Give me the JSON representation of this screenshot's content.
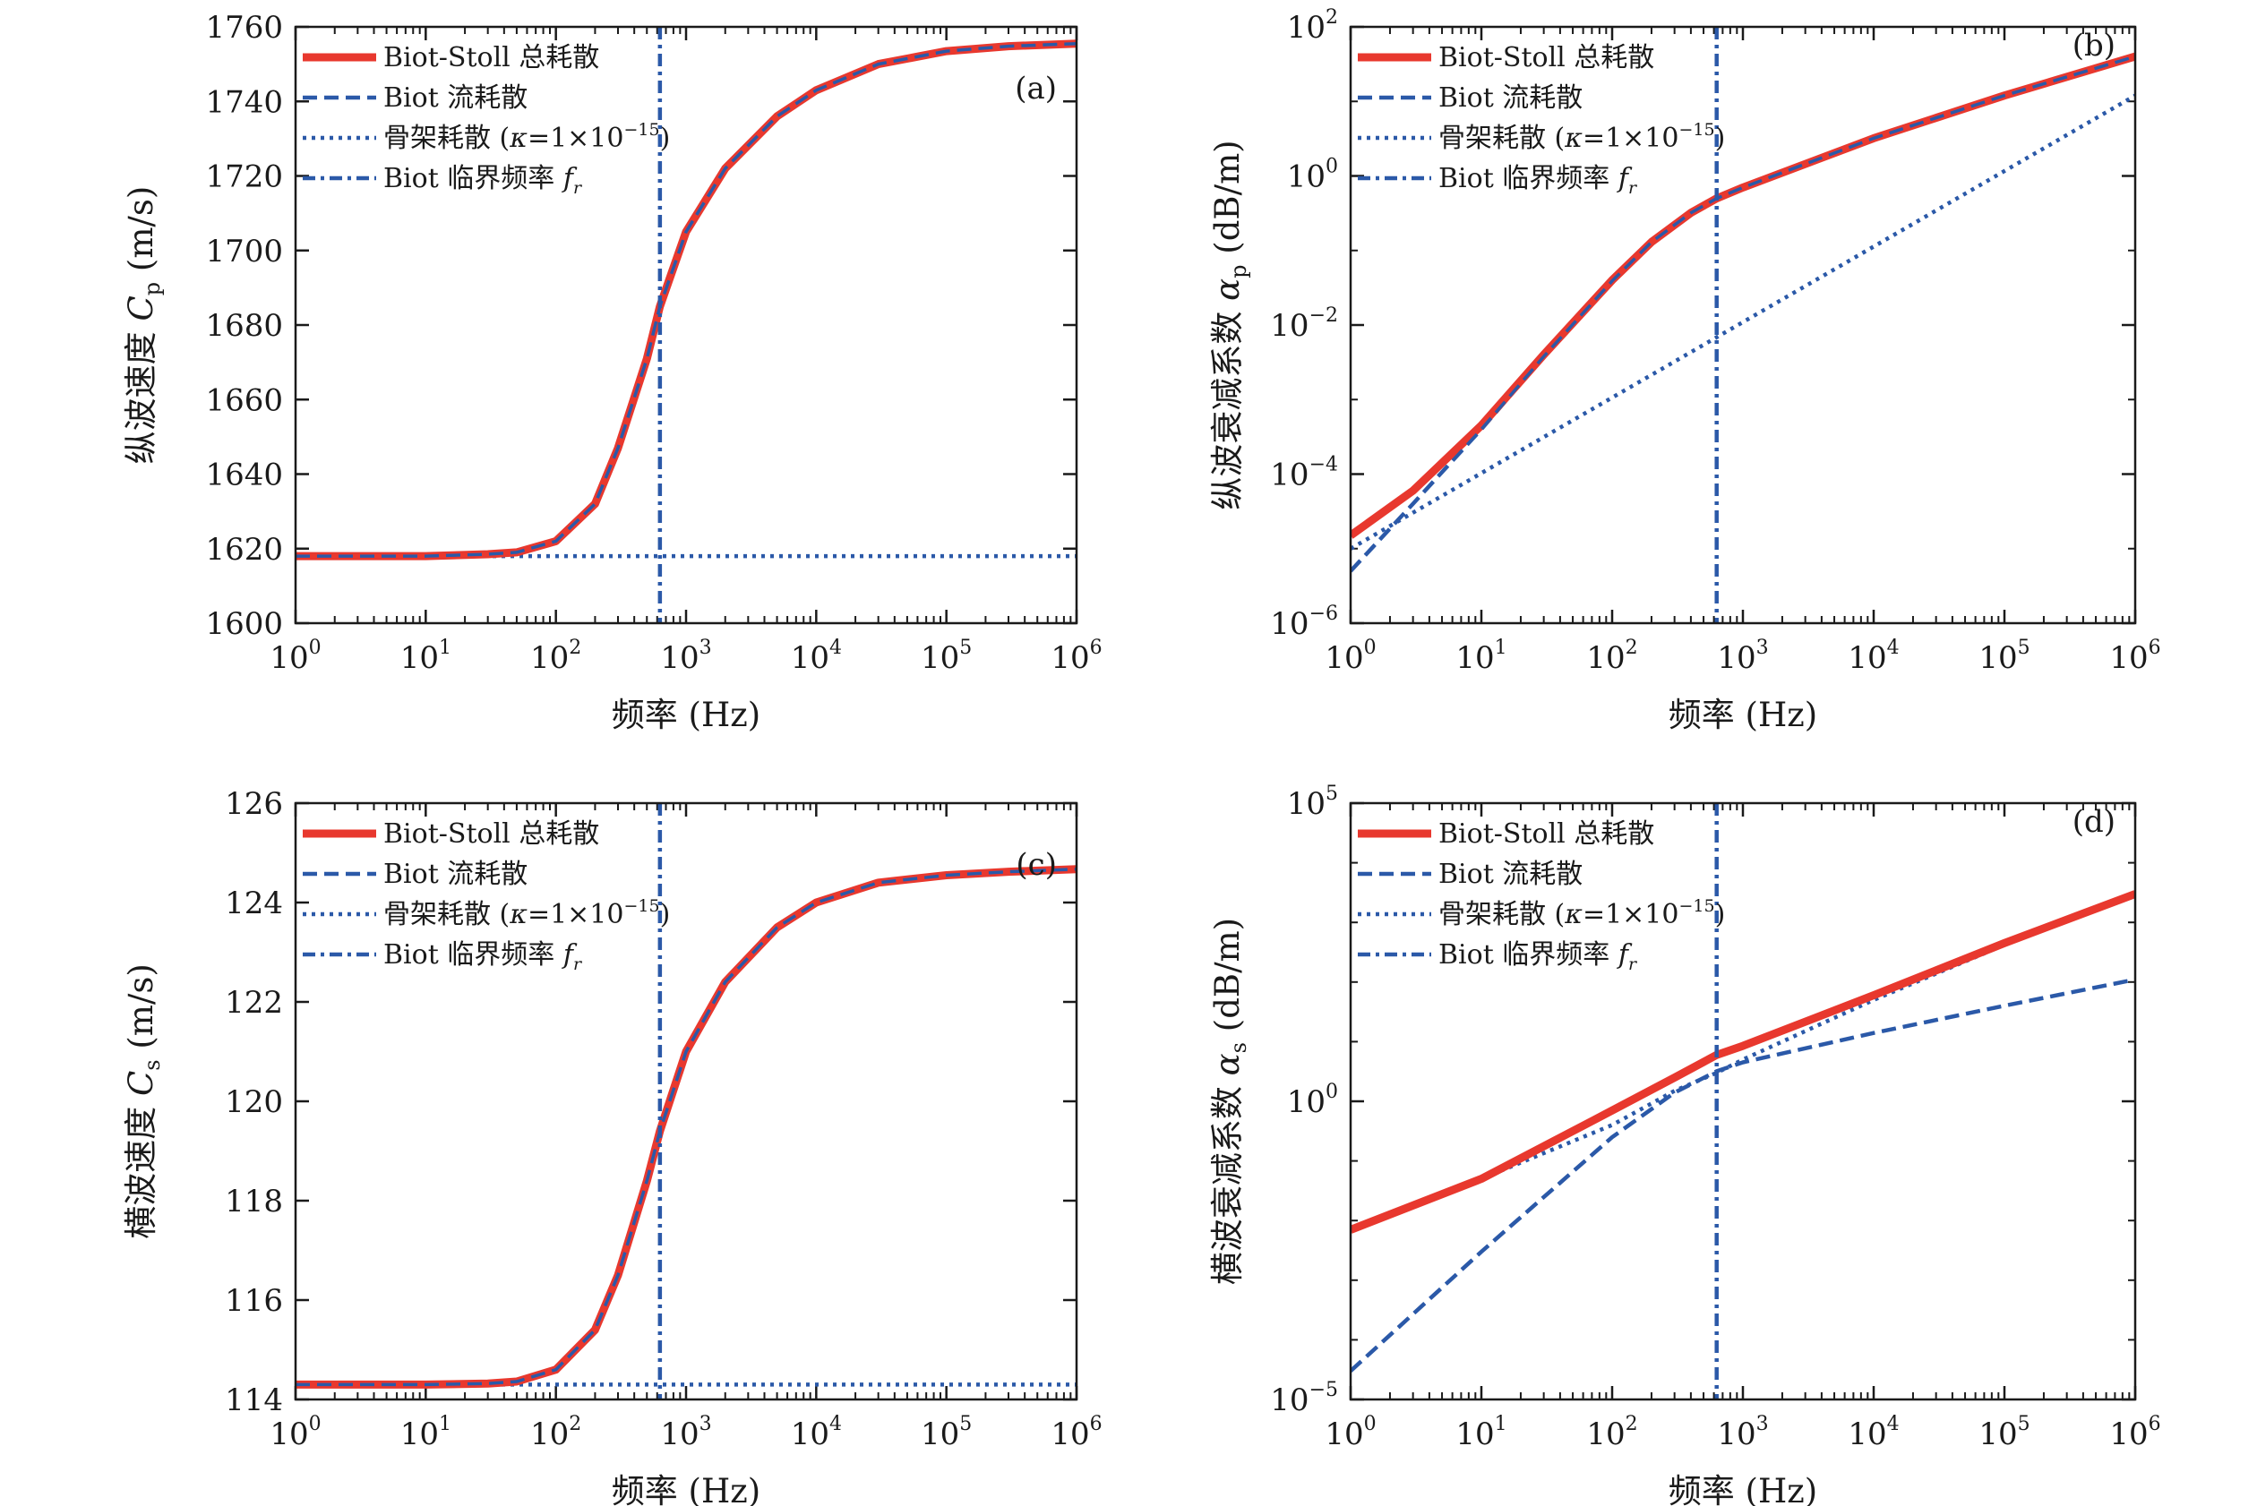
{
  "colors": {
    "red": "#e8382e",
    "blue": "#2b59a8",
    "axis": "#1a1a1a"
  },
  "legend": [
    {
      "key": "total",
      "text": "Biot-Stoll 总耗散",
      "style": "solid-red"
    },
    {
      "key": "flow",
      "text": "Biot 流耗散",
      "style": "dashed-blue"
    },
    {
      "key": "frame",
      "text": "骨架耗散 (κ=1×10⁻¹⁵)",
      "pre": "骨架耗散 (",
      "kappa": "κ",
      "mid": "=1×10",
      "sup": "−15",
      "post": ")",
      "style": "dotted-blue"
    },
    {
      "key": "critical",
      "text": "Biot 临界频率 fᵣ",
      "pre": "Biot 临界频率 ",
      "f": "f",
      "sub": "r",
      "style": "dashdot-blue"
    }
  ],
  "x_axis": {
    "label": "频率 (Hz)",
    "ticks": [
      {
        "base": "10",
        "exp": "0"
      },
      {
        "base": "10",
        "exp": "1"
      },
      {
        "base": "10",
        "exp": "2"
      },
      {
        "base": "10",
        "exp": "3"
      },
      {
        "base": "10",
        "exp": "4"
      },
      {
        "base": "10",
        "exp": "5"
      },
      {
        "base": "10",
        "exp": "6"
      }
    ]
  },
  "panels": [
    {
      "tag": "(a)",
      "ylabel_pre": "纵波速度 ",
      "ylabel_sym": "C",
      "ylabel_sub": "p",
      "ylabel_post": " (m/s)",
      "y_ticks": [
        "1600",
        "1620",
        "1640",
        "1660",
        "1680",
        "1700",
        "1720",
        "1740",
        "1760"
      ]
    },
    {
      "tag": "(b)",
      "ylabel_pre": "纵波衰减系数 ",
      "ylabel_sym": "α",
      "ylabel_sub": "p",
      "ylabel_post": " (dB/m)",
      "y_ticks": [
        {
          "base": "10",
          "exp": "−6"
        },
        {
          "base": "10",
          "exp": "−4"
        },
        {
          "base": "10",
          "exp": "−2"
        },
        {
          "base": "10",
          "exp": "0"
        },
        {
          "base": "10",
          "exp": "2"
        }
      ]
    },
    {
      "tag": "(c)",
      "ylabel_pre": "横波速度 ",
      "ylabel_sym": "C",
      "ylabel_sub": "s",
      "ylabel_post": " (m/s)",
      "y_ticks": [
        "114",
        "116",
        "118",
        "120",
        "122",
        "124",
        "126"
      ]
    },
    {
      "tag": "(d)",
      "ylabel_pre": "横波衰减系数 ",
      "ylabel_sym": "α",
      "ylabel_sub": "s",
      "ylabel_post": " (dB/m)",
      "y_ticks": [
        {
          "base": "10",
          "exp": "−5"
        },
        {
          "base": "10",
          "exp": "0"
        },
        {
          "base": "10",
          "exp": "5"
        }
      ]
    }
  ],
  "chart_data": [
    {
      "panel": "a",
      "type": "line",
      "xscale": "log",
      "xlim": [
        1,
        1000000
      ],
      "yscale": "linear",
      "ylim": [
        1600,
        1760
      ],
      "xlabel": "频率 (Hz)",
      "ylabel": "纵波速度 Cp (m/s)",
      "critical_frequency_hz": 630,
      "series": [
        {
          "name": "Biot-Stoll 总耗散",
          "x": [
            1,
            10,
            30,
            50,
            100,
            200,
            300,
            500,
            630,
            1000,
            2000,
            5000,
            10000,
            30000,
            100000,
            300000,
            1000000
          ],
          "y": [
            1618,
            1618,
            1618.5,
            1619,
            1622,
            1632,
            1647,
            1671,
            1685,
            1705,
            1722,
            1736,
            1743,
            1750,
            1753.5,
            1754.8,
            1755.5
          ]
        },
        {
          "name": "Biot 流耗散",
          "x": [
            1,
            10,
            30,
            50,
            100,
            200,
            300,
            500,
            630,
            1000,
            2000,
            5000,
            10000,
            30000,
            100000,
            300000,
            1000000
          ],
          "y": [
            1618,
            1618,
            1618.5,
            1619,
            1622,
            1632,
            1647,
            1671,
            1685,
            1705,
            1722,
            1736,
            1743,
            1750,
            1753.5,
            1754.8,
            1755.5
          ]
        },
        {
          "name": "骨架耗散 (κ=1×10⁻¹⁵)",
          "x": [
            1,
            1000000
          ],
          "y": [
            1618,
            1618
          ]
        }
      ]
    },
    {
      "panel": "b",
      "type": "line",
      "xscale": "log",
      "xlim": [
        1,
        1000000
      ],
      "yscale": "log",
      "ylim": [
        1e-06,
        100
      ],
      "xlabel": "频率 (Hz)",
      "ylabel": "纵波衰减系数 αp (dB/m)",
      "critical_frequency_hz": 630,
      "series": [
        {
          "name": "Biot-Stoll 总耗散",
          "x": [
            1,
            3,
            10,
            30,
            100,
            200,
            400,
            630,
            1000,
            10000,
            100000,
            1000000
          ],
          "y": [
            1.5e-05,
            6e-05,
            0.00045,
            0.004,
            0.04,
            0.13,
            0.32,
            0.5,
            0.7,
            3.2,
            12,
            40
          ]
        },
        {
          "name": "Biot 流耗散",
          "x": [
            1,
            3,
            10,
            30,
            100,
            200,
            400,
            630,
            1000,
            10000,
            100000,
            1000000
          ],
          "y": [
            5e-06,
            4e-05,
            0.0004,
            0.0038,
            0.039,
            0.13,
            0.32,
            0.5,
            0.7,
            3.2,
            12,
            40
          ]
        },
        {
          "name": "骨架耗散 (κ=1×10⁻¹⁵)",
          "x": [
            1,
            1000000
          ],
          "y": [
            1e-05,
            12
          ]
        }
      ]
    },
    {
      "panel": "c",
      "type": "line",
      "xscale": "log",
      "xlim": [
        1,
        1000000
      ],
      "yscale": "linear",
      "ylim": [
        114,
        126
      ],
      "xlabel": "频率 (Hz)",
      "ylabel": "横波速度 Cs (m/s)",
      "critical_frequency_hz": 630,
      "series": [
        {
          "name": "Biot-Stoll 总耗散",
          "x": [
            1,
            10,
            30,
            50,
            100,
            200,
            300,
            500,
            630,
            1000,
            2000,
            5000,
            10000,
            30000,
            100000,
            300000,
            1000000
          ],
          "y": [
            114.3,
            114.3,
            114.32,
            114.36,
            114.6,
            115.4,
            116.5,
            118.4,
            119.4,
            121.0,
            122.4,
            123.5,
            124.0,
            124.4,
            124.55,
            124.62,
            124.67
          ]
        },
        {
          "name": "Biot 流耗散",
          "x": [
            1,
            10,
            30,
            50,
            100,
            200,
            300,
            500,
            630,
            1000,
            2000,
            5000,
            10000,
            30000,
            100000,
            300000,
            1000000
          ],
          "y": [
            114.3,
            114.3,
            114.32,
            114.36,
            114.6,
            115.4,
            116.5,
            118.4,
            119.4,
            121.0,
            122.4,
            123.5,
            124.0,
            124.4,
            124.55,
            124.62,
            124.67
          ]
        },
        {
          "name": "骨架耗散 (κ=1×10⁻¹⁵)",
          "x": [
            1,
            1000000
          ],
          "y": [
            114.3,
            114.3
          ]
        }
      ]
    },
    {
      "panel": "d",
      "type": "line",
      "xscale": "log",
      "xlim": [
        1,
        1000000
      ],
      "yscale": "log",
      "ylim": [
        1e-05,
        100000
      ],
      "xlabel": "频率 (Hz)",
      "ylabel": "横波衰减系数 αs (dB/m)",
      "critical_frequency_hz": 630,
      "series": [
        {
          "name": "Biot-Stoll 总耗散",
          "x": [
            1,
            10,
            100,
            300,
            630,
            1000,
            10000,
            100000,
            1000000
          ],
          "y": [
            0.007,
            0.05,
            0.7,
            2.5,
            6,
            8.5,
            60,
            450,
            3000
          ]
        },
        {
          "name": "Biot 流耗散",
          "x": [
            1,
            10,
            100,
            300,
            630,
            1000,
            10000,
            100000,
            1000000
          ],
          "y": [
            3e-05,
            0.003,
            0.25,
            1.4,
            3.2,
            4.5,
            14,
            40,
            110
          ]
        },
        {
          "name": "骨架耗散 (κ=1×10⁻¹⁵)",
          "x": [
            1,
            10,
            100,
            300,
            630,
            1000,
            10000,
            100000,
            1000000
          ],
          "y": [
            0.007,
            0.05,
            0.4,
            1.5,
            3,
            5,
            50,
            420,
            2900
          ]
        }
      ]
    }
  ]
}
